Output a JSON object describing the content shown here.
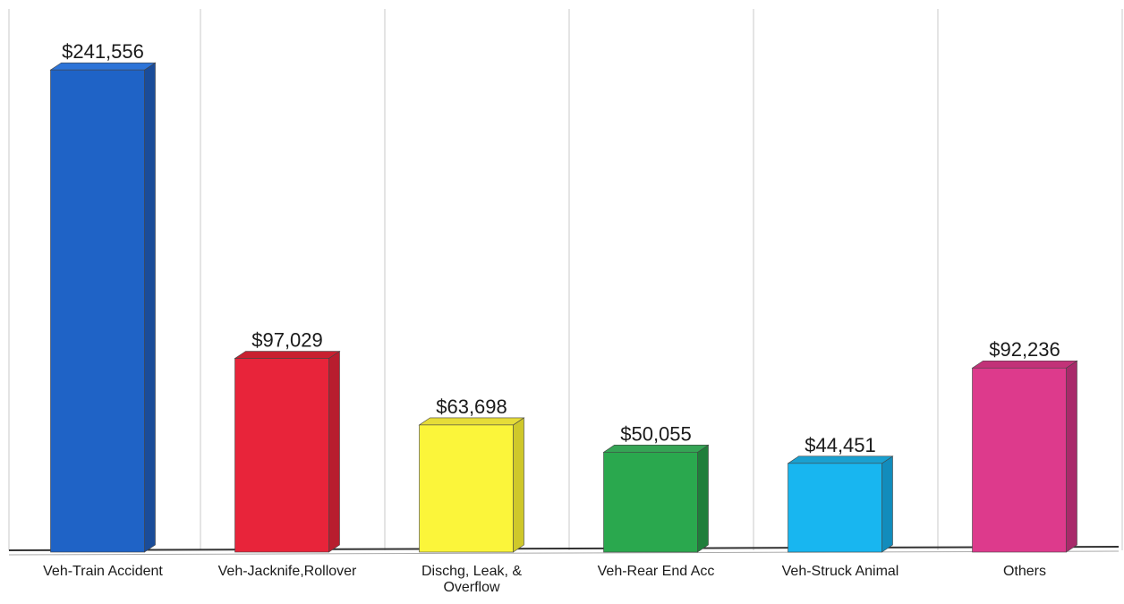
{
  "chart_data": {
    "type": "bar",
    "categories": [
      [
        "Veh-Train Accident"
      ],
      [
        "Veh-Jacknife,Rollover"
      ],
      [
        "Dischg, Leak, &",
        "Overflow"
      ],
      [
        "Veh-Rear End Acc"
      ],
      [
        "Veh-Struck Animal"
      ],
      [
        "Others"
      ]
    ],
    "values": [
      241556,
      97029,
      63698,
      50055,
      44451,
      92236
    ],
    "value_labels": [
      "$241,556",
      "$97,029",
      "$63,698",
      "$50,055",
      "$44,451",
      "$92,236"
    ],
    "colors": [
      "#1f63c6",
      "#e8243a",
      "#fbf53a",
      "#2aa84e",
      "#18b6f0",
      "#dd3a8c"
    ],
    "side_colors": [
      "#1a4c99",
      "#b81d2e",
      "#cfc82a",
      "#1f7e3a",
      "#128cbc",
      "#a82a6a"
    ],
    "top_colors": [
      "#2d74d8",
      "#c82030",
      "#e6dc38",
      "#35a455",
      "#1aa0d0",
      "#c23278"
    ],
    "ylim": [
      0,
      260000
    ],
    "grid": "vertical-separators",
    "style": "3d"
  }
}
